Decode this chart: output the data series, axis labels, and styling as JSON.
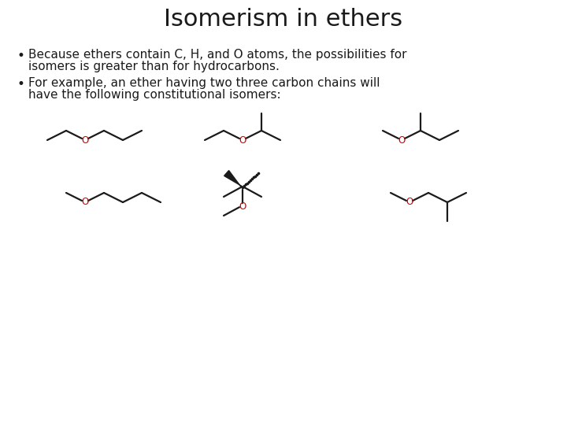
{
  "title": "Isomerism in ethers",
  "title_fontsize": 22,
  "bullet_fontsize": 11,
  "background_color": "#ffffff",
  "line_color": "#1a1a1a",
  "o_color": "#cc0000",
  "line_width": 1.6,
  "bullet1_line1": "Because ethers contain C, H, and O atoms, the possibilities for",
  "bullet1_line2": "isomers is greater than for hydrocarbons.",
  "bullet2_line1": "For example, an ether having two three carbon chains will",
  "bullet2_line2": "have the following constitutional isomers:"
}
